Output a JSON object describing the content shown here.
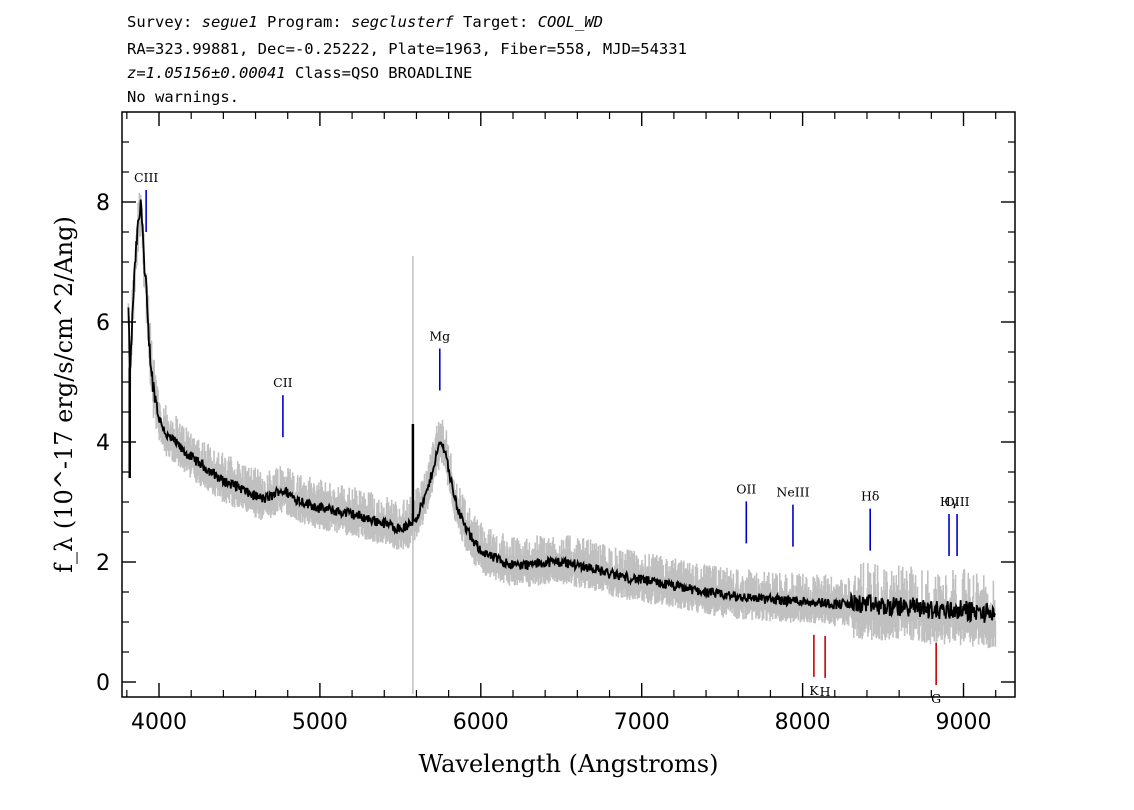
{
  "header": {
    "survey_label": "Survey:",
    "survey": "segue1",
    "program_label": "Program:",
    "program": "segclusterf",
    "target_label": "Target:",
    "target": "COOL_WD",
    "line2": "RA=323.99881, Dec=-0.25222, Plate=1963, Fiber=558, MJD=54331",
    "redshift": "z=1.05156±0.00041",
    "class": "Class=QSO BROADLINE",
    "warnings": "No warnings."
  },
  "chart_data": {
    "type": "line",
    "xlabel": "Wavelength (Angstroms)",
    "ylabel": "f_λ (10^-17 erg/s/cm^2/Ang)",
    "xlim": [
      3770,
      9320
    ],
    "ylim": [
      -0.25,
      9.5
    ],
    "xticks": [
      4000,
      5000,
      6000,
      7000,
      8000,
      9000
    ],
    "yticks": [
      0,
      2,
      4,
      6,
      8
    ],
    "grid": false,
    "colors": {
      "flux": "#000000",
      "error": "#c0c0c0",
      "emission": "#0000cc",
      "absorption": "#cc0000"
    },
    "series": [
      {
        "x": [
          3810,
          3820,
          3830,
          3840,
          3850,
          3860,
          3870,
          3880,
          3890,
          3900,
          3910,
          3920,
          3930,
          3940,
          3950,
          3960,
          3980,
          4000,
          4050,
          4100,
          4150,
          4200,
          4250,
          4300,
          4350,
          4400,
          4450,
          4500,
          4550,
          4600,
          4650,
          4700,
          4750,
          4800,
          4850,
          4900,
          4950,
          5000,
          5100,
          5200,
          5300,
          5400,
          5500,
          5550,
          5600,
          5650,
          5680,
          5720,
          5750,
          5780,
          5810,
          5850,
          5900,
          5950,
          6000,
          6050,
          6100,
          6150,
          6200,
          6300,
          6400,
          6500,
          6600,
          6700,
          6800,
          6900,
          7000,
          7100,
          7200,
          7300,
          7400,
          7500,
          7600,
          7700,
          7800,
          7900,
          8000,
          8100,
          8200,
          8300,
          8400,
          8500,
          8600,
          8700,
          8800,
          8900,
          9000,
          9100,
          9200
        ],
        "values": [
          6.2,
          5.0,
          5.8,
          6.4,
          6.9,
          7.3,
          7.6,
          7.8,
          8.0,
          7.5,
          6.8,
          6.6,
          6.0,
          5.6,
          5.3,
          5.0,
          4.7,
          4.4,
          4.1,
          4.0,
          3.85,
          3.75,
          3.65,
          3.55,
          3.45,
          3.35,
          3.3,
          3.25,
          3.15,
          3.1,
          3.05,
          3.1,
          3.2,
          3.15,
          3.05,
          3.0,
          2.95,
          2.9,
          2.85,
          2.8,
          2.72,
          2.65,
          2.55,
          2.6,
          2.75,
          3.05,
          3.3,
          3.75,
          4.0,
          3.85,
          3.4,
          2.95,
          2.6,
          2.35,
          2.2,
          2.1,
          2.05,
          2.0,
          1.95,
          1.95,
          2.0,
          2.0,
          1.95,
          1.9,
          1.8,
          1.75,
          1.7,
          1.65,
          1.6,
          1.55,
          1.5,
          1.45,
          1.42,
          1.4,
          1.38,
          1.36,
          1.35,
          1.33,
          1.3,
          1.3,
          1.3,
          1.25,
          1.25,
          1.25,
          1.2,
          1.2,
          1.2,
          1.15,
          1.15
        ]
      }
    ],
    "spikes": [
      {
        "x": 3818,
        "y": 3.4
      },
      {
        "x": 5578,
        "y": 4.3
      }
    ],
    "error_spikes": [
      {
        "x": 5578,
        "top": 7.1,
        "bottom": -0.2
      }
    ],
    "emission_lines": [
      {
        "label": "CIII",
        "x": 3920
      },
      {
        "label": "CII",
        "x": 4770
      },
      {
        "label": "Mg",
        "x": 5745
      },
      {
        "label": "OII",
        "x": 7650
      },
      {
        "label": "NeIII",
        "x": 7940
      },
      {
        "label": "Hδ",
        "x": 8420
      },
      {
        "label": "Hγ",
        "x": 8910
      },
      {
        "label": "OIII",
        "x": 8960
      }
    ],
    "absorption_lines": [
      {
        "label": "K",
        "x": 8070
      },
      {
        "label": "H",
        "x": 8140
      },
      {
        "label": "G",
        "x": 8830
      }
    ]
  }
}
